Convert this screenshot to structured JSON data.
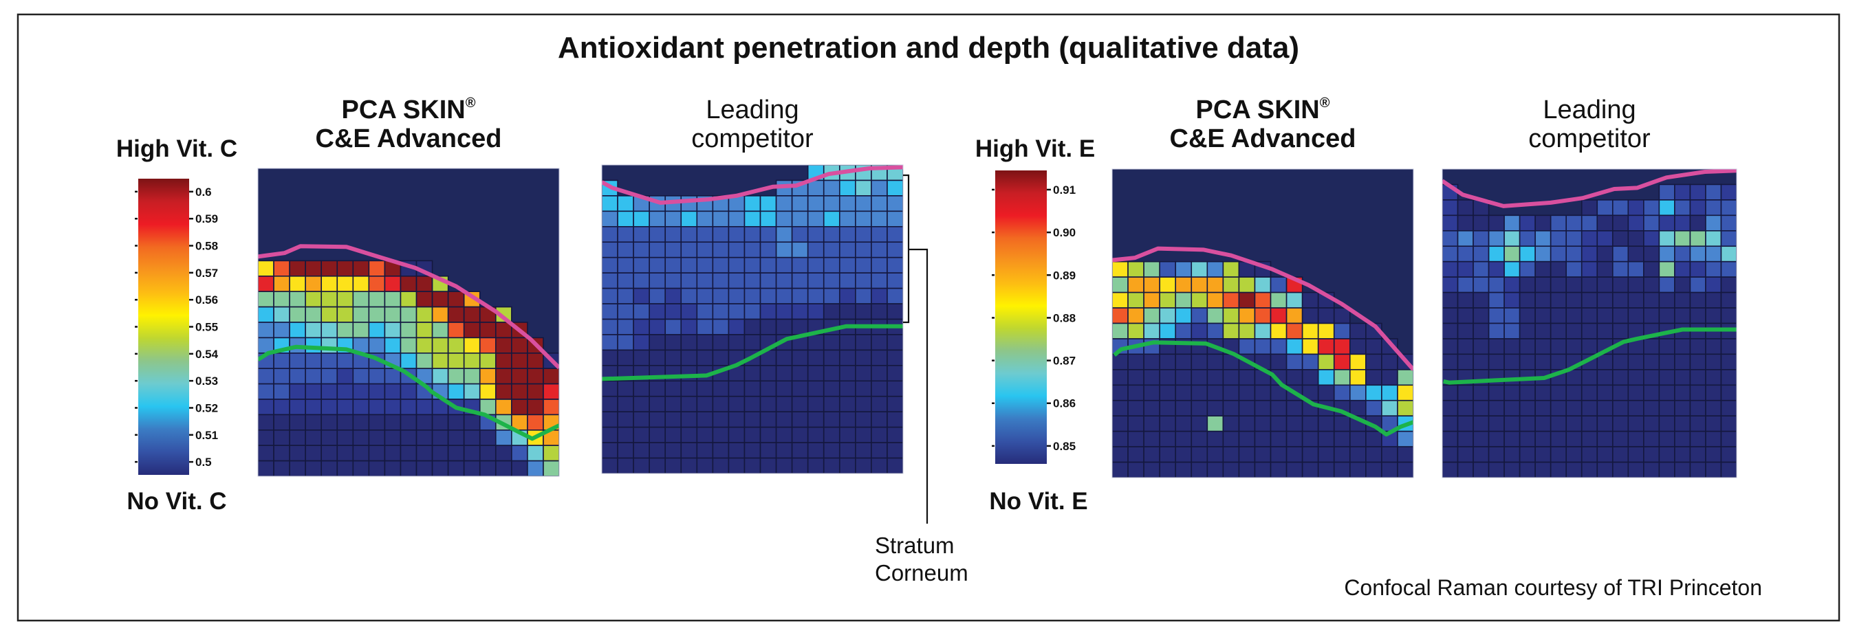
{
  "title": "Antioxidant penetration and depth (qualitative data)",
  "panels": {
    "product_brand": "PCA SKIN",
    "product_mark": "®",
    "product_name": "C&E Advanced",
    "competitor_line1": "Leading",
    "competitor_line2": "competitor"
  },
  "colorbars": {
    "vit_c": {
      "high_label": "High Vit. C",
      "low_label": "No Vit. C"
    },
    "vit_e": {
      "high_label": "High Vit. E",
      "low_label": "No Vit. E"
    }
  },
  "annotation": {
    "line1": "Stratum",
    "line2": "Corneum"
  },
  "credit": "Confocal Raman courtesy of TRI Princeton",
  "colors": {
    "frame": "#222222",
    "background_map": "#1f285c",
    "grid_line": "#14183f",
    "surface_line": "#d9509f",
    "boundary_line": "#1db34a",
    "bracket": "#111111"
  },
  "chart_data": {
    "type": "heatmap",
    "title": "Antioxidant penetration and depth (qualitative data)",
    "palette": {
      "0": "#272c74",
      "1": "#2f3b96",
      "2": "#3a58b2",
      "3": "#4a86d0",
      "4": "#34c0ee",
      "5": "#6fcdd6",
      "6": "#86cc9c",
      "7": "#b5d33c",
      "8": "#fde21a",
      "9": "#f9a41c",
      "a": "#f0582a",
      "b": "#e5242a",
      "c": "#8a1a1d"
    },
    "colorbars": [
      {
        "name": "Vitamin C",
        "range": [
          0.4952,
          0.6048
        ],
        "ticks": [
          "0.6",
          "0.59",
          "0.58",
          "0.57",
          "0.56",
          "0.55",
          "0.54",
          "0.53",
          "0.52",
          "0.51",
          "0.5"
        ],
        "colormap": [
          "#7d1315",
          "#c81e24",
          "#ed1c24",
          "#f26a21",
          "#f7941d",
          "#fdbd13",
          "#fff200",
          "#bfd730",
          "#8dc68a",
          "#6dcbd0",
          "#29c5f0",
          "#3b7cc4",
          "#3452a6",
          "#262c7a"
        ]
      },
      {
        "name": "Vitamin E",
        "range": [
          0.8458,
          0.9145
        ],
        "ticks": [
          "0.91",
          "0.90",
          "0.89",
          "0.88",
          "0.87",
          "0.86",
          "0.85"
        ],
        "colormap": [
          "#7d1315",
          "#c81e24",
          "#ed1c24",
          "#f26a21",
          "#f7941d",
          "#fdbd13",
          "#fff200",
          "#bfd730",
          "#8dc68a",
          "#6dcbd0",
          "#29c5f0",
          "#3b7cc4",
          "#3452a6",
          "#262c7a"
        ]
      }
    ],
    "maps": [
      {
        "name": "PCA SKIN C&E Advanced - Vitamin C",
        "colorbar": 0,
        "cols": 19,
        "rows": [
          "...................",
          "...................",
          "...................",
          "...................",
          "...................",
          "...................",
          "8acccccac00........",
          "b989888abcc7.......",
          "6667776667ccc9.....",
          "456677666679ccc7...",
          "334556645676acccc..",
          "34345433467778accc.",
          "222222223467777ccc0",
          "222221222235669cccc",
          "221111111123458cccb",
          "1111111111111169cca",
          "00000000000000269a9",
          "0000000000000003589",
          "0000000000000000257",
          "0000000000000000036"
        ],
        "surface": [
          [
            0,
            5.73
          ],
          [
            1.67,
            5.5
          ],
          [
            2.68,
            5.06
          ],
          [
            5.58,
            5.1
          ],
          [
            7.32,
            5.65
          ],
          [
            9.93,
            6.47
          ],
          [
            12.5,
            7.66
          ],
          [
            15.0,
            9.3
          ],
          [
            17.2,
            11.1
          ],
          [
            19,
            12.95
          ]
        ],
        "boundary": [
          [
            0,
            12.43
          ],
          [
            0.65,
            12.0
          ],
          [
            2.39,
            11.6
          ],
          [
            5.58,
            11.76
          ],
          [
            7.32,
            12.28
          ],
          [
            9.2,
            13.17
          ],
          [
            10.65,
            14.2
          ],
          [
            10.94,
            14.5
          ],
          [
            12.5,
            15.55
          ],
          [
            14.3,
            16.0
          ],
          [
            16.6,
            17.2
          ],
          [
            17.3,
            17.56
          ],
          [
            18.0,
            17.2
          ],
          [
            19,
            16.7
          ]
        ]
      },
      {
        "name": "Leading competitor - Vitamin C",
        "colorbar": 0,
        "cols": 19,
        "rows": [
          ".............455555",
          "4..........33334534",
          "4433333334433333333",
          "3443343334433343333",
          "2222222222232222222",
          "2222222222233222222",
          "2222222222222222222",
          "2222222222222222222",
          "2212122222222221212",
          "2221112222111100000",
          "2211212210000000000",
          "2210000000000000000",
          "0000000000000000000",
          "0000000000000000000",
          "0000000000000000000",
          "0000000000000000000",
          "0000000000000000000",
          "0000000000000000000",
          "0000000000000000000",
          "0000000000000000000"
        ],
        "surface": [
          [
            0,
            1.11
          ],
          [
            0.65,
            1.48
          ],
          [
            3.7,
            2.45
          ],
          [
            6.74,
            2.23
          ],
          [
            8.48,
            2.0
          ],
          [
            10.8,
            1.41
          ],
          [
            12.25,
            1.34
          ],
          [
            14.3,
            0.59
          ],
          [
            16.9,
            0.22
          ],
          [
            19,
            0.15
          ]
        ],
        "boundary": [
          [
            0,
            13.87
          ],
          [
            6.6,
            13.65
          ],
          [
            8.48,
            12.98
          ],
          [
            9.35,
            12.54
          ],
          [
            11.67,
            11.28
          ],
          [
            15.4,
            10.46
          ],
          [
            19,
            10.46
          ]
        ]
      },
      {
        "name": "PCA SKIN C&E Advanced - Vitamin E",
        "colorbar": 1,
        "cols": 19,
        "rows": [
          "...................",
          "...................",
          "...................",
          "...................",
          "...................",
          "...................",
          "8762353700.........",
          "69989997752b.......",
          "8797679aca6500.....",
          "a96542679ab9000....",
          "67542127758a88200..",
          "2220000022248bb000.",
          "00000000000227b8000",
          "0000000000000468006",
          "0000000000000023448",
          "0000000000000000257",
          "0000006000000000024",
          "0000000000000000013",
          "0000000000000000000",
          "0000000000000000000"
        ],
        "surface": [
          [
            0,
            5.9
          ],
          [
            1.44,
            5.75
          ],
          [
            2.89,
            5.15
          ],
          [
            5.78,
            5.23
          ],
          [
            7.51,
            5.6
          ],
          [
            10.1,
            6.49
          ],
          [
            12.4,
            7.53
          ],
          [
            14.45,
            8.72
          ],
          [
            16.6,
            10.2
          ],
          [
            19,
            13.0
          ]
        ],
        "boundary": [
          [
            0.14,
            12.06
          ],
          [
            0.58,
            11.68
          ],
          [
            2.6,
            11.24
          ],
          [
            5.92,
            11.31
          ],
          [
            7.66,
            11.98
          ],
          [
            10.1,
            13.32
          ],
          [
            10.7,
            13.99
          ],
          [
            12.7,
            15.25
          ],
          [
            14.45,
            15.7
          ],
          [
            16.6,
            16.7
          ],
          [
            17.3,
            17.2
          ],
          [
            18.2,
            16.7
          ],
          [
            19,
            16.4
          ]
        ]
      },
      {
        "name": "Leading competitor - Vitamin E",
        "colorbar": 1,
        "cols": 19,
        "rows": [
          "...................",
          "1.............21121",
          "100......0221242122",
          "1000310222001211032",
          "2323523221100156652",
          "2224643221020032335",
          "1121420021022061122",
          "1222100000000020210",
          "0002100000000000000",
          "0002200000000000000",
          "0002200000000000000",
          "0000000000000000000",
          "0000000000000000000",
          "0000000000000000000",
          "0000000000000000000",
          "0000000000000000000",
          "0000000000000000000",
          "0000000000000000000",
          "0000000000000000000",
          "0000000000000000000"
        ],
        "surface": [
          [
            0,
            0.77
          ],
          [
            1.32,
            1.66
          ],
          [
            3.95,
            2.4
          ],
          [
            7.0,
            2.18
          ],
          [
            9.06,
            1.88
          ],
          [
            11.1,
            1.29
          ],
          [
            12.57,
            1.22
          ],
          [
            14.47,
            0.55
          ],
          [
            16.95,
            0.18
          ],
          [
            19,
            0.1
          ]
        ],
        "boundary": [
          [
            0.07,
            13.76
          ],
          [
            0.44,
            13.84
          ],
          [
            6.58,
            13.54
          ],
          [
            8.18,
            13.0
          ],
          [
            9.35,
            12.4
          ],
          [
            11.7,
            11.2
          ],
          [
            12.57,
            11.0
          ],
          [
            15.5,
            10.4
          ],
          [
            19,
            10.4
          ]
        ]
      }
    ]
  }
}
